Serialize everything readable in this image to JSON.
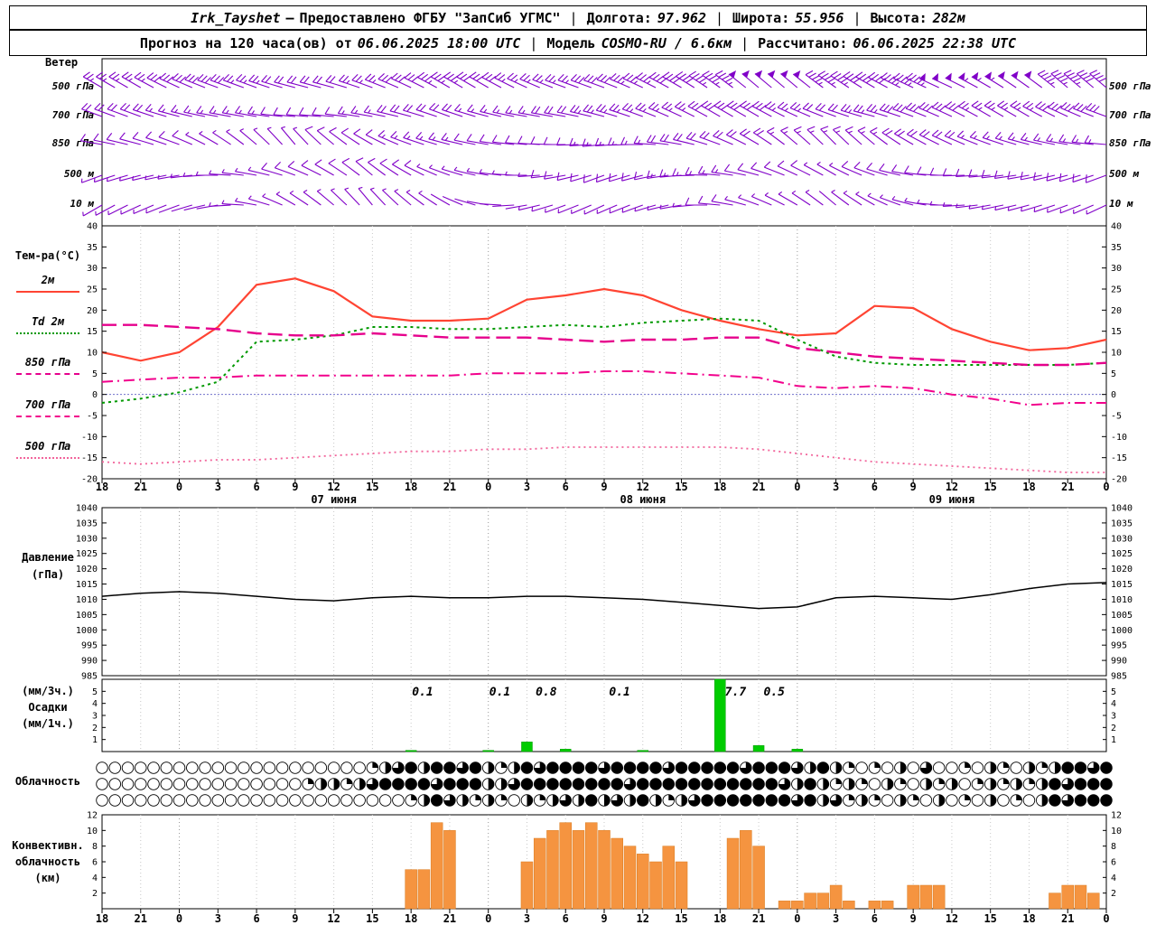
{
  "header": {
    "station": "Irk_Tayshet",
    "dash": "—",
    "provider": "Предоставлено ФГБУ \"ЗапСиб УГМС\"",
    "sep": "|",
    "lon_label": "Долгота:",
    "lon": "97.962",
    "lat_label": "Широта:",
    "lat": "55.956",
    "alt_label": "Высота:",
    "alt": "282м",
    "fc_label": "Прогноз на 120 часа(ов) от",
    "fc_time": "06.06.2025 18:00 UTC",
    "model_label": "Модель",
    "model": "COSMO-RU / 6.6км",
    "calc_label": "Рассчитано:",
    "calc_time": "06.06.2025 22:38 UTC"
  },
  "axis": {
    "hours": [
      "18",
      "21",
      "0",
      "3",
      "6",
      "9",
      "12",
      "15",
      "18",
      "21",
      "0",
      "3",
      "6",
      "9",
      "12",
      "15",
      "18",
      "21",
      "0",
      "3",
      "6",
      "9",
      "12",
      "15",
      "18",
      "21",
      "0"
    ],
    "dates": [
      {
        "label": "07 июня",
        "index": 6
      },
      {
        "label": "08 июня",
        "index": 14
      },
      {
        "label": "09 июня",
        "index": 22
      }
    ]
  },
  "chart_data": [
    {
      "id": "wind",
      "type": "wind-barbs",
      "title": "Ветер",
      "color": "#8000c8",
      "levels": [
        {
          "label": "500 гПа",
          "dirs": [
            300,
            300,
            295,
            290,
            290,
            285,
            285,
            290,
            295,
            300,
            300,
            295,
            290,
            290,
            295,
            300,
            305,
            310,
            310,
            305,
            300,
            295,
            295,
            300,
            305,
            310,
            310
          ],
          "speeds": [
            25,
            25,
            30,
            30,
            25,
            20,
            20,
            25,
            30,
            35,
            30,
            25,
            25,
            30,
            35,
            40,
            45,
            50,
            50,
            45,
            40,
            45,
            50,
            55,
            50,
            45,
            40
          ]
        },
        {
          "label": "700 гПа",
          "dirs": [
            290,
            290,
            285,
            280,
            280,
            275,
            275,
            280,
            285,
            290,
            285,
            280,
            280,
            285,
            290,
            295,
            300,
            300,
            295,
            290,
            285,
            290,
            295,
            300,
            300,
            295,
            290
          ],
          "speeds": [
            20,
            20,
            15,
            15,
            15,
            10,
            10,
            15,
            20,
            20,
            15,
            15,
            20,
            25,
            25,
            25,
            30,
            30,
            25,
            20,
            25,
            30,
            30,
            25,
            25,
            30,
            30
          ]
        },
        {
          "label": "850 гПа",
          "dirs": [
            280,
            285,
            290,
            300,
            310,
            320,
            310,
            300,
            290,
            285,
            280,
            275,
            270,
            265,
            270,
            280,
            290,
            300,
            310,
            315,
            310,
            300,
            295,
            290,
            285,
            280,
            275
          ],
          "speeds": [
            10,
            10,
            10,
            5,
            5,
            5,
            10,
            10,
            15,
            15,
            10,
            10,
            10,
            15,
            15,
            20,
            20,
            20,
            15,
            15,
            15,
            20,
            20,
            15,
            15,
            15,
            15
          ]
        },
        {
          "label": "500 м",
          "dirs": [
            250,
            255,
            260,
            270,
            280,
            290,
            300,
            310,
            300,
            290,
            280,
            270,
            260,
            250,
            255,
            265,
            275,
            285,
            295,
            300,
            290,
            280,
            270,
            265,
            260,
            255,
            250
          ],
          "speeds": [
            5,
            5,
            5,
            5,
            5,
            10,
            10,
            10,
            10,
            5,
            5,
            5,
            10,
            10,
            10,
            15,
            15,
            10,
            10,
            5,
            10,
            10,
            10,
            10,
            10,
            10,
            10
          ]
        },
        {
          "label": "10 м",
          "dirs": [
            240,
            245,
            250,
            260,
            280,
            300,
            310,
            320,
            310,
            300,
            280,
            260,
            250,
            245,
            250,
            260,
            275,
            290,
            300,
            310,
            300,
            285,
            270,
            260,
            255,
            250,
            245
          ],
          "speeds": [
            5,
            5,
            2,
            2,
            5,
            5,
            5,
            5,
            5,
            2,
            2,
            2,
            5,
            5,
            5,
            5,
            10,
            5,
            5,
            2,
            5,
            5,
            5,
            5,
            5,
            5,
            5
          ]
        }
      ]
    },
    {
      "id": "temperature",
      "type": "line",
      "title": "Тем-ра(°C)",
      "ylim": [
        -20,
        40
      ],
      "ytick": 5,
      "zero_line": 0,
      "series": [
        {
          "name": "2м",
          "color": "#ff4433",
          "line_style": "solid",
          "width": 2.2,
          "dash": "",
          "values": [
            10,
            8,
            10,
            16,
            26,
            27.5,
            24.5,
            18.5,
            17.5,
            17.5,
            18,
            22.5,
            23.5,
            25,
            23.5,
            20,
            17.5,
            15.5,
            14,
            14.5,
            21,
            20.5,
            15.5,
            12.5,
            10.5,
            11,
            13
          ]
        },
        {
          "name": "Td 2м",
          "color": "#009900",
          "line_style": "dotted",
          "width": 2,
          "dash": "3 4",
          "values": [
            -2,
            -1,
            0.5,
            3,
            12.5,
            13,
            14,
            16,
            16,
            15.5,
            15.5,
            16,
            16.5,
            16,
            17,
            17.5,
            18,
            17.5,
            13,
            9,
            7.5,
            7,
            7,
            7,
            7,
            7,
            7.5
          ]
        },
        {
          "name": "850 гПа",
          "color": "#e6008c",
          "line_style": "dashed",
          "width": 2.4,
          "dash": "16 7",
          "values": [
            16.5,
            16.5,
            16,
            15.5,
            14.5,
            14,
            14,
            14.5,
            14,
            13.5,
            13.5,
            13.5,
            13,
            12.5,
            13,
            13,
            13.5,
            13.5,
            11,
            10,
            9,
            8.5,
            8,
            7.5,
            7,
            7,
            7.5
          ]
        },
        {
          "name": "700 гПа",
          "color": "#f2008c",
          "line_style": "dashdot",
          "width": 2,
          "dash": "12 5 2 5",
          "values": [
            3,
            3.5,
            4,
            4,
            4.5,
            4.5,
            4.5,
            4.5,
            4.5,
            4.5,
            5,
            5,
            5,
            5.5,
            5.5,
            5,
            4.5,
            4,
            2,
            1.5,
            2,
            1.5,
            0,
            -1,
            -2.5,
            -2,
            -2
          ]
        },
        {
          "name": "500 гПа",
          "color": "#f2649b",
          "line_style": "dotted",
          "width": 1.8,
          "dash": "2 4",
          "values": [
            -16,
            -16.5,
            -16,
            -15.5,
            -15.5,
            -15,
            -14.5,
            -14,
            -13.5,
            -13.5,
            -13,
            -13,
            -12.5,
            -12.5,
            -12.5,
            -12.5,
            -12.5,
            -13,
            -14,
            -15,
            -16,
            -16.5,
            -17,
            -17.5,
            -18,
            -18.5,
            -18.5
          ]
        }
      ]
    },
    {
      "id": "pressure",
      "type": "line",
      "title_lines": [
        "Давление",
        "(гПа)"
      ],
      "ylim": [
        985,
        1040
      ],
      "ytick": 5,
      "series": [
        {
          "name": "Давление (гПа)",
          "color": "#000000",
          "width": 1.5,
          "dash": "",
          "values": [
            1011,
            1012,
            1012.5,
            1012,
            1011,
            1010,
            1009.5,
            1010.5,
            1011,
            1010.5,
            1010.5,
            1011,
            1011,
            1010.5,
            1010,
            1009,
            1008,
            1007,
            1007.5,
            1010.5,
            1011,
            1010.5,
            1010,
            1011.5,
            1013.5,
            1015,
            1015.5
          ]
        }
      ]
    },
    {
      "id": "precip",
      "type": "bar",
      "title_lines": [
        "(мм/3ч.)",
        "Осадки",
        "(мм/1ч.)"
      ],
      "ylim": [
        0,
        6
      ],
      "ytick": 1,
      "color": "#00cc00",
      "values": [
        0,
        0,
        0,
        0,
        0,
        0,
        0,
        0,
        0.1,
        0,
        0.1,
        0.8,
        0.2,
        0,
        0.1,
        0,
        7.7,
        0.5,
        0.2,
        0,
        0,
        0,
        0,
        0,
        0,
        0,
        0
      ],
      "labels": [
        {
          "text": "0.1",
          "i": 8.3
        },
        {
          "text": "0.1",
          "i": 10.3
        },
        {
          "text": "0.8",
          "i": 11.5
        },
        {
          "text": "0.1",
          "i": 13.4
        },
        {
          "text": "7.7",
          "i": 16.4
        },
        {
          "text": "0.5",
          "i": 17.4
        }
      ]
    },
    {
      "id": "cloud",
      "type": "symbols",
      "title": "Облачность",
      "rows": [
        [
          0,
          0,
          0,
          0,
          0,
          0,
          0,
          0,
          0,
          0,
          0,
          0,
          0,
          0,
          0,
          0,
          0,
          0,
          0,
          0,
          0,
          0.25,
          0.5,
          0.75,
          1,
          0.5,
          1,
          1,
          0.75,
          1,
          0.5,
          0.25,
          0.5,
          1,
          0.75,
          1,
          1,
          1,
          1,
          0.75,
          1,
          1,
          1,
          1,
          0.75,
          1,
          1,
          1,
          1,
          1,
          0.75,
          1,
          1,
          1,
          0.75,
          0.5,
          1,
          0.5,
          0.25,
          0,
          0.25,
          0,
          0.5,
          0,
          0.75,
          0,
          0,
          0.25,
          0,
          0.5,
          0.25,
          0,
          0.5,
          0.25,
          0.5,
          1,
          1,
          0.75,
          1
        ],
        [
          0,
          0,
          0,
          0,
          0,
          0,
          0,
          0,
          0,
          0,
          0,
          0,
          0,
          0,
          0,
          0,
          0.25,
          0.5,
          0.5,
          0.25,
          0.5,
          0.75,
          1,
          1,
          1,
          1,
          0.75,
          1,
          1,
          1,
          0.5,
          0.5,
          0.75,
          1,
          1,
          1,
          1,
          1,
          1,
          1,
          1,
          0.75,
          1,
          1,
          1,
          1,
          1,
          1,
          1,
          1,
          1,
          1,
          1,
          0.75,
          0.5,
          1,
          0.5,
          0.25,
          0.5,
          0.25,
          0,
          0.5,
          0.25,
          0,
          0.5,
          0.25,
          0.5,
          0,
          0.25,
          0.5,
          0.25,
          0.5,
          0.25,
          0.5,
          1,
          0.75,
          1,
          1,
          1
        ],
        [
          0,
          0,
          0,
          0,
          0,
          0,
          0,
          0,
          0,
          0,
          0,
          0,
          0,
          0,
          0,
          0,
          0,
          0,
          0,
          0,
          0,
          0,
          0,
          0,
          0.25,
          0.5,
          1,
          0.75,
          0.5,
          0.25,
          0.5,
          0.25,
          0,
          0.5,
          0.25,
          0.5,
          0.75,
          0.5,
          1,
          0.5,
          0.75,
          0.5,
          1,
          0.5,
          0.25,
          0.5,
          0.75,
          1,
          1,
          1,
          1,
          1,
          1,
          1,
          0.75,
          1,
          0.5,
          0.75,
          0.25,
          0.5,
          0.25,
          0,
          0.5,
          0.25,
          0,
          0.5,
          0,
          0.25,
          0,
          0.5,
          0,
          0.25,
          0,
          0.5,
          1,
          0.75,
          1,
          1,
          1
        ]
      ]
    },
    {
      "id": "convective",
      "type": "bar",
      "title_lines": [
        "Конвективн.",
        "облачность",
        "(км)"
      ],
      "ylim": [
        0,
        12
      ],
      "ytick": 2,
      "color": "#f59440",
      "values": [
        0,
        0,
        0,
        0,
        0,
        0,
        0,
        0,
        0,
        0,
        0,
        0,
        0,
        0,
        0,
        0,
        0,
        0,
        0,
        0,
        0,
        0,
        0,
        0,
        5,
        5,
        11,
        10,
        0,
        0,
        0,
        0,
        0,
        6,
        9,
        10,
        11,
        10,
        11,
        10,
        9,
        8,
        7,
        6,
        8,
        6,
        0,
        0,
        0,
        9,
        10,
        8,
        0,
        1,
        1,
        2,
        2,
        3,
        1,
        0,
        1,
        1,
        0,
        3,
        3,
        3,
        0,
        0,
        0,
        0,
        0,
        0,
        0,
        0,
        2,
        3,
        3,
        2,
        0
      ]
    }
  ]
}
